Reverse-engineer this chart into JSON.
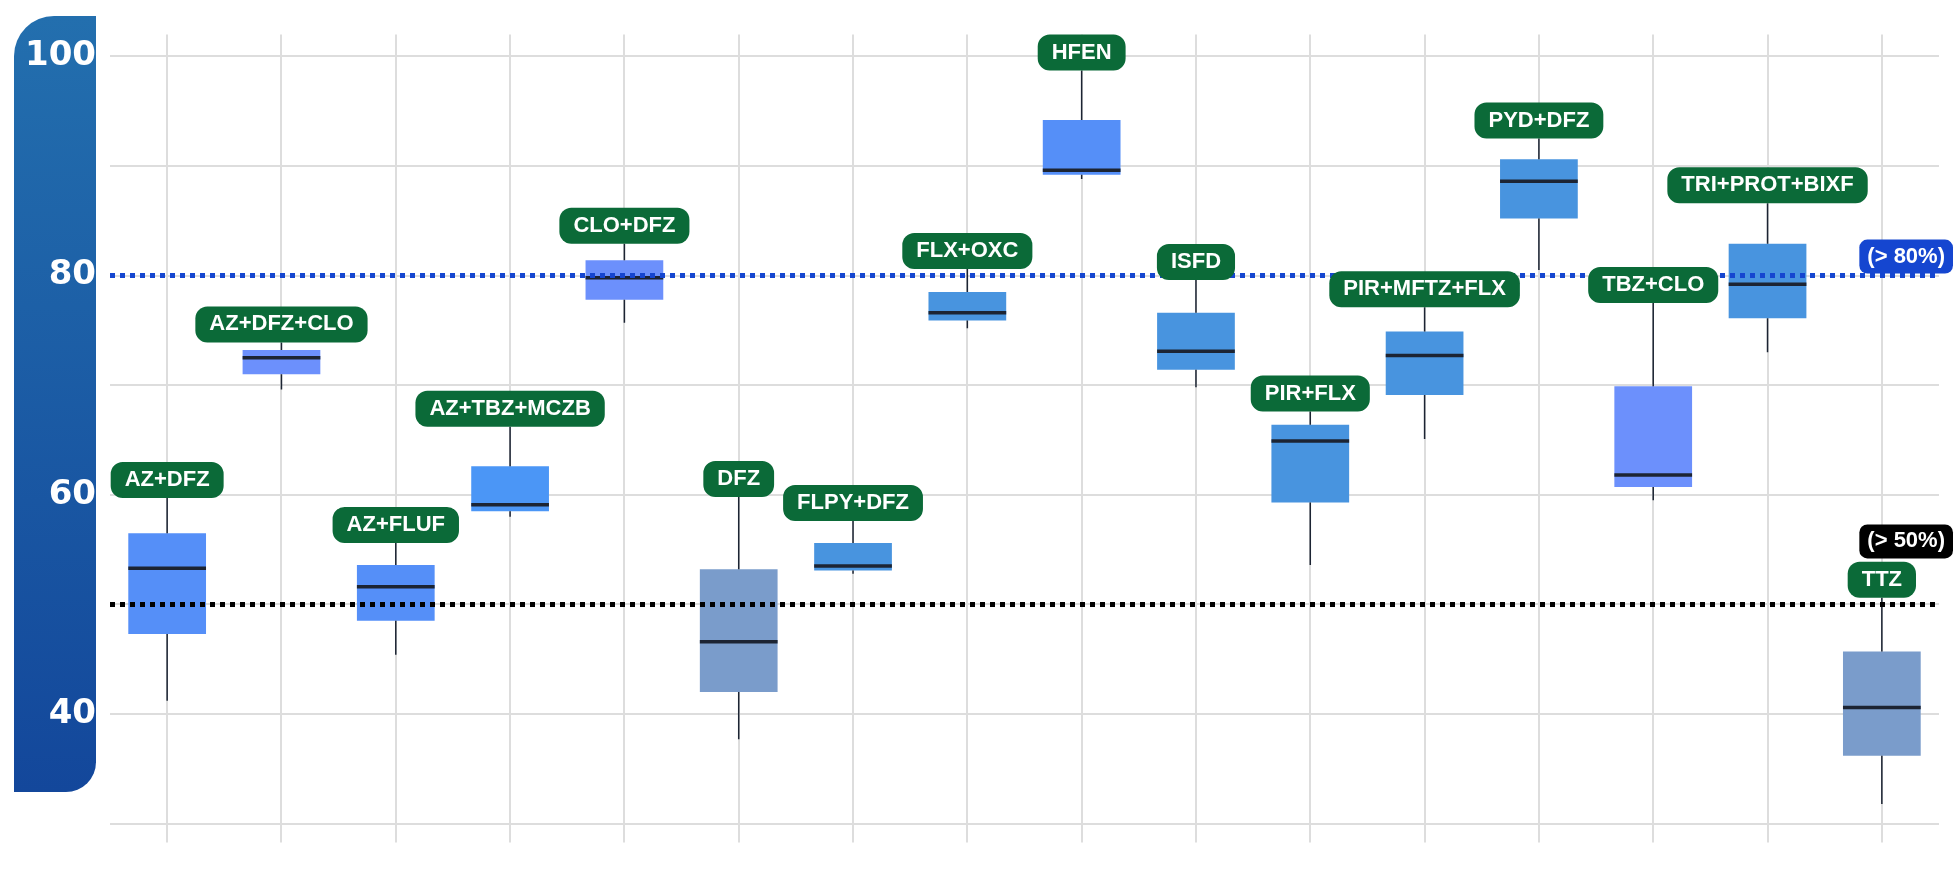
{
  "chart_data": {
    "type": "box",
    "categories": [
      "AZ+DFZ",
      "AZ+DFZ+CLO",
      "AZ+FLUF",
      "AZ+TBZ+MCZB",
      "CLO+DFZ",
      "DFZ",
      "FLPY+DFZ",
      "FLX+OXC",
      "HFEN",
      "ISFD",
      "PIR+FLX",
      "PIR+MFTZ+FLX",
      "PYD+DFZ",
      "TBZ+CLO",
      "TRI+PROT+BIXF",
      "TTZ"
    ],
    "boxes": [
      {
        "low": 41.2,
        "q1": 47.3,
        "median": 53.3,
        "q3": 56.5,
        "high": 59.7
      },
      {
        "low": 69.6,
        "q1": 71.0,
        "median": 72.5,
        "q3": 73.2,
        "high": 73.9
      },
      {
        "low": 45.4,
        "q1": 48.5,
        "median": 51.6,
        "q3": 53.6,
        "high": 55.6
      },
      {
        "low": 58.0,
        "q1": 58.5,
        "median": 59.1,
        "q3": 62.6,
        "high": 66.2
      },
      {
        "low": 75.7,
        "q1": 77.8,
        "median": 79.8,
        "q3": 81.4,
        "high": 82.9
      },
      {
        "low": 37.7,
        "q1": 42.0,
        "median": 46.6,
        "q3": 53.2,
        "high": 59.8
      },
      {
        "low": 52.8,
        "q1": 53.1,
        "median": 53.5,
        "q3": 55.6,
        "high": 57.6
      },
      {
        "low": 75.2,
        "q1": 75.9,
        "median": 76.6,
        "q3": 78.5,
        "high": 80.6
      },
      {
        "low": 88.8,
        "q1": 89.2,
        "median": 89.6,
        "q3": 94.2,
        "high": 98.7
      },
      {
        "low": 69.8,
        "q1": 71.4,
        "median": 73.1,
        "q3": 76.6,
        "high": 79.6
      },
      {
        "low": 53.6,
        "q1": 59.3,
        "median": 64.9,
        "q3": 66.4,
        "high": 67.6
      },
      {
        "low": 65.1,
        "q1": 69.1,
        "median": 72.7,
        "q3": 74.9,
        "high": 77.1
      },
      {
        "low": 80.5,
        "q1": 85.2,
        "median": 88.6,
        "q3": 90.6,
        "high": 92.5
      },
      {
        "low": 59.5,
        "q1": 60.7,
        "median": 61.8,
        "q3": 69.9,
        "high": 77.5
      },
      {
        "low": 73.0,
        "q1": 76.1,
        "median": 79.2,
        "q3": 82.9,
        "high": 86.6
      },
      {
        "low": 31.8,
        "q1": 36.2,
        "median": 40.6,
        "q3": 45.7,
        "high": 50.6
      }
    ],
    "colors": [
      "#558ff8",
      "#6c90fc",
      "#558ff8",
      "#4b96f6",
      "#6c90fc",
      "#7a9ccb",
      "#4894df",
      "#4894df",
      "#558ff8",
      "#4894df",
      "#4894df",
      "#4894df",
      "#4894df",
      "#6c90fc",
      "#4894df",
      "#7a9ccb"
    ],
    "ylim": [
      29,
      102
    ],
    "yticks": [
      {
        "value": 30,
        "label": null
      },
      40,
      {
        "value": 50,
        "label": null
      },
      60,
      {
        "value": 70,
        "label": null
      },
      80,
      {
        "value": 90,
        "label": null
      },
      100
    ],
    "grid": true,
    "legend": false,
    "ref_lines": [
      {
        "axis": "y",
        "value": 80,
        "label": "(> 80%)",
        "color": "#1546d0",
        "line_style": "dotted"
      },
      {
        "axis": "y",
        "value": 50,
        "label": "(> 50%)",
        "color": "#000000",
        "line_style": "dotted"
      }
    ]
  }
}
